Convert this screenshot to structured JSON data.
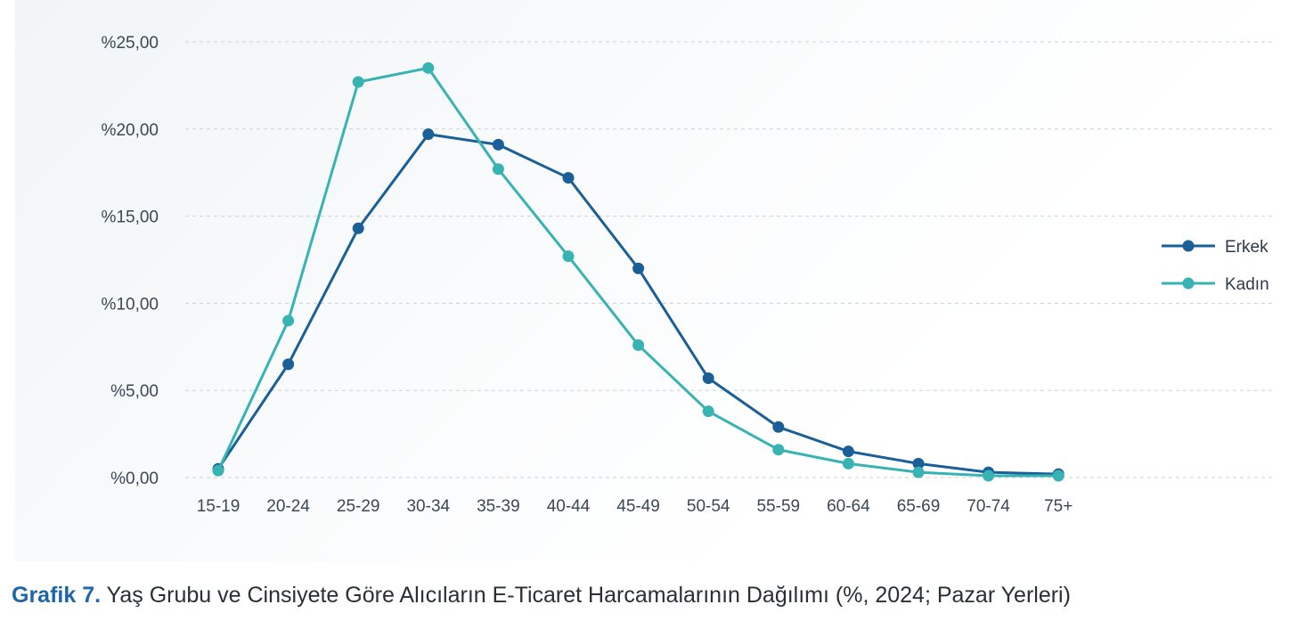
{
  "caption": {
    "label": "Grafik 7.",
    "text": " Yaş Grubu ve Cinsiyete Göre Alıcıların E-Ticaret Harcamalarının Dağılımı (%, 2024; Pazar Yerleri)"
  },
  "chart_data": {
    "type": "line",
    "title": "",
    "xlabel": "",
    "ylabel": "",
    "categories": [
      "15-19",
      "20-24",
      "25-29",
      "30-34",
      "35-39",
      "40-44",
      "45-49",
      "50-54",
      "55-59",
      "60-64",
      "65-69",
      "70-74",
      "75+"
    ],
    "y_ticks": [
      "%0,00",
      "%5,00",
      "%10,00",
      "%15,00",
      "%20,00",
      "%25,00"
    ],
    "y_tick_values": [
      0,
      5,
      10,
      15,
      20,
      25
    ],
    "ylim": [
      0,
      25
    ],
    "grid": "horizontal-dashed",
    "legend_position": "right",
    "series": [
      {
        "name": "Erkek",
        "color": "#1a5f97",
        "values": [
          0.5,
          6.5,
          14.3,
          19.7,
          19.1,
          17.2,
          12.0,
          5.7,
          2.9,
          1.5,
          0.8,
          0.3,
          0.2
        ]
      },
      {
        "name": "Kadın",
        "color": "#37b3b3",
        "values": [
          0.4,
          9.0,
          22.7,
          23.5,
          17.7,
          12.7,
          7.6,
          3.8,
          1.6,
          0.8,
          0.3,
          0.1,
          0.1
        ]
      }
    ]
  }
}
